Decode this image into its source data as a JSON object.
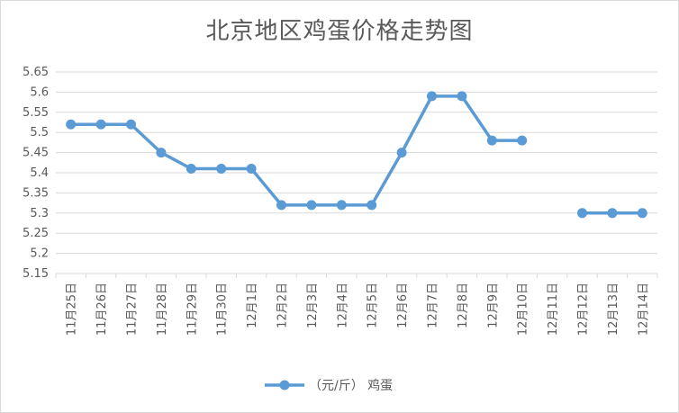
{
  "chart_data": {
    "type": "line",
    "title": "北京地区鸡蛋价格走势图",
    "xlabel": "",
    "ylabel": "",
    "categories": [
      "11月25日",
      "11月26日",
      "11月27日",
      "11月28日",
      "11月29日",
      "11月30日",
      "12月1日",
      "12月2日",
      "12月3日",
      "12月4日",
      "12月5日",
      "12月6日",
      "12月7日",
      "12月8日",
      "12月9日",
      "12月10日",
      "12月11日",
      "12月12日",
      "12月13日",
      "12月14日"
    ],
    "series": [
      {
        "name": "（元/斤） 鸡蛋",
        "values": [
          5.52,
          5.52,
          5.52,
          5.45,
          5.41,
          5.41,
          5.41,
          5.32,
          5.32,
          5.32,
          5.32,
          5.45,
          5.59,
          5.59,
          5.48,
          5.48,
          null,
          5.3,
          5.3,
          5.3
        ],
        "color": "#5b9bd5"
      }
    ],
    "ylim": [
      5.15,
      5.65
    ],
    "yticks": [
      "5.15",
      "5.2",
      "5.25",
      "5.3",
      "5.35",
      "5.4",
      "5.45",
      "5.5",
      "5.55",
      "5.6",
      "5.65"
    ],
    "grid": true,
    "legend_position": "bottom"
  }
}
